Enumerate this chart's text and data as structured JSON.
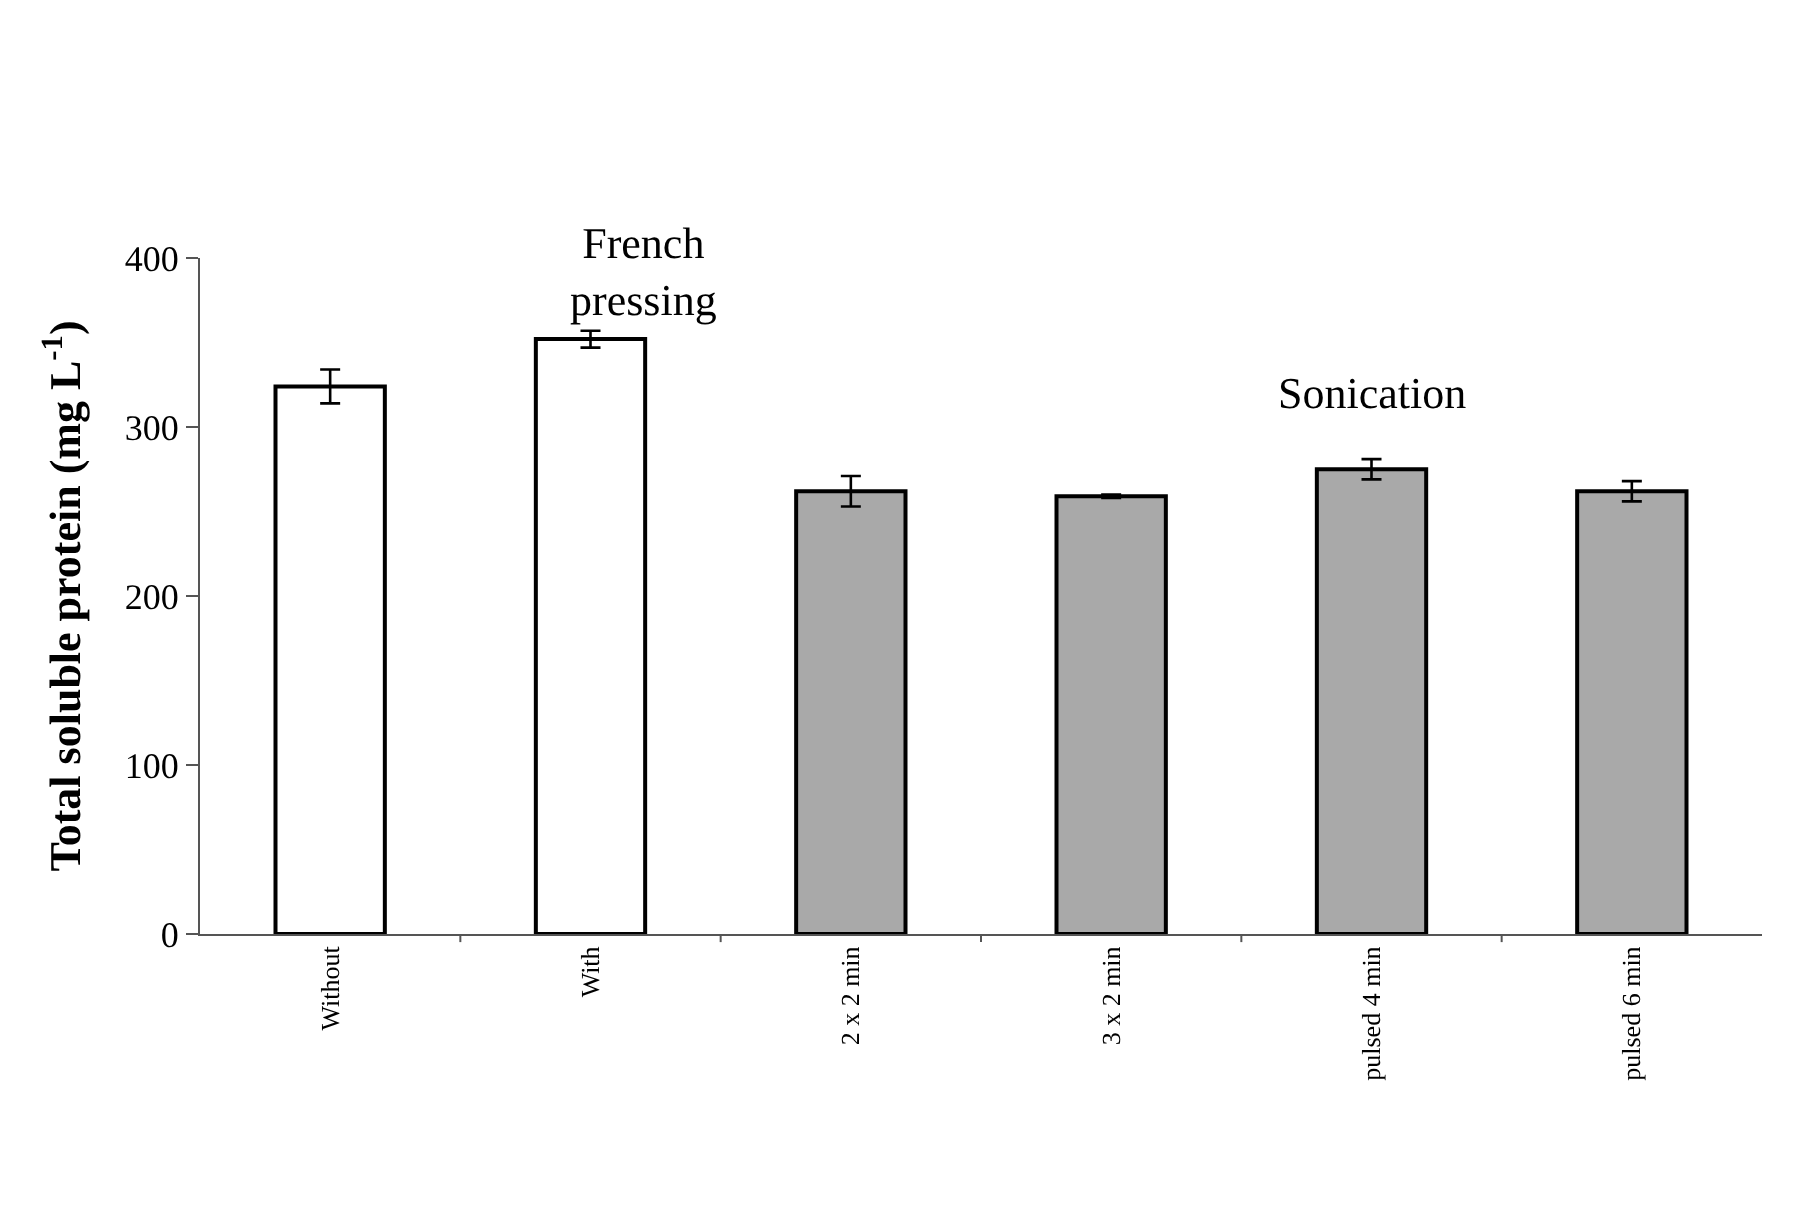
{
  "chart_data": {
    "type": "bar",
    "ylabel": "Total soluble protein (mg L$^{-1}$)",
    "categories": [
      "Without",
      "With",
      "2 x 2 min",
      "3 x 2 min",
      "pulsed 4 min",
      "pulsed 6 min"
    ],
    "values": [
      324,
      352,
      262,
      259,
      275,
      262
    ],
    "errors": [
      10,
      5,
      9,
      1,
      6,
      6
    ],
    "colors": [
      "#ffffff",
      "#ffffff",
      "#a9a9a9",
      "#a9a9a9",
      "#a9a9a9",
      "#a9a9a9"
    ],
    "ylim": [
      0,
      400
    ],
    "yticks": [
      0,
      100,
      200,
      300,
      400
    ],
    "annotations": [
      "French pressing",
      "Sonication"
    ]
  }
}
